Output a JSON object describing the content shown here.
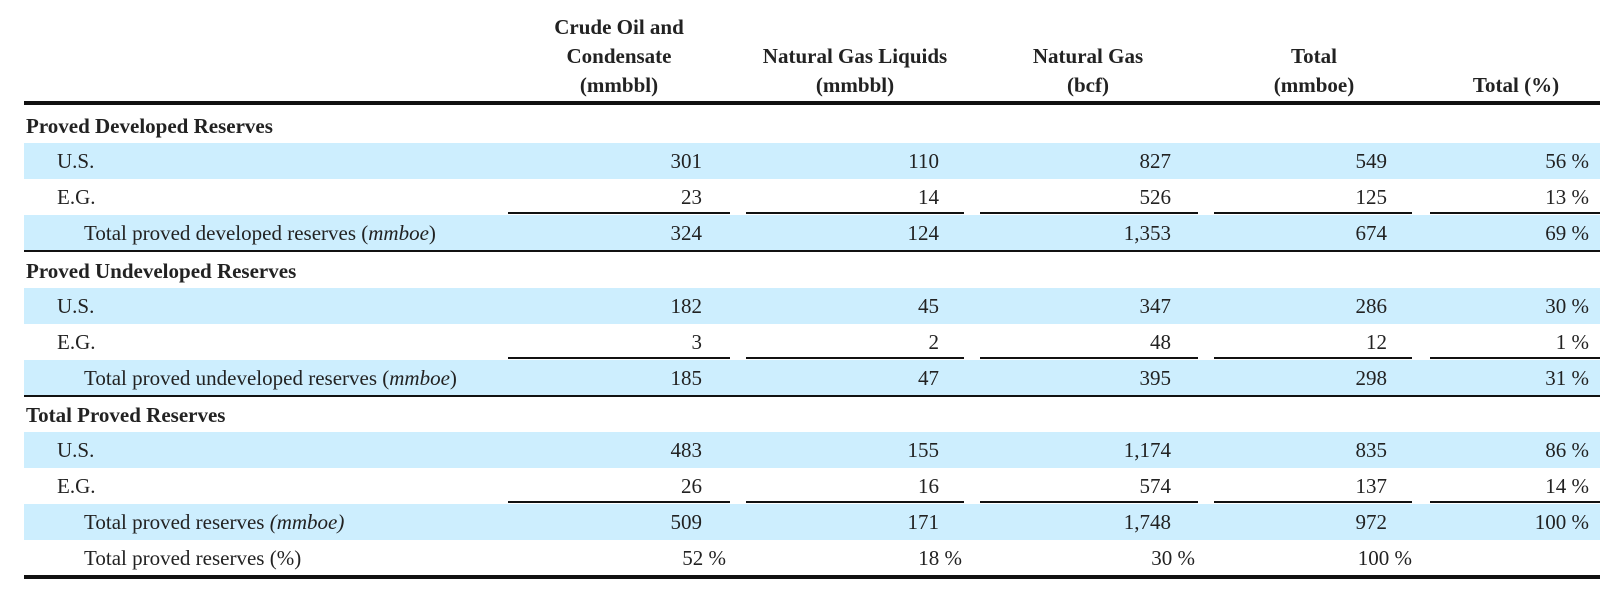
{
  "headers": [
    {
      "lines": [
        "Crude Oil and",
        "Condensate",
        "(mmbbl)"
      ]
    },
    {
      "lines": [
        "Natural Gas Liquids",
        "(mmbbl)"
      ]
    },
    {
      "lines": [
        "Natural Gas",
        "(bcf)"
      ]
    },
    {
      "lines": [
        "Total",
        "(mmboe)"
      ]
    },
    {
      "lines": [
        "Total (%)"
      ]
    }
  ],
  "sections": [
    {
      "title": "Proved Developed Reserves",
      "rows": [
        {
          "label": "U.S.",
          "values": [
            "301",
            "110",
            "827",
            "549",
            "56 %"
          ]
        },
        {
          "label": "E.G.",
          "values": [
            "23",
            "14",
            "526",
            "125",
            "13 %"
          ]
        }
      ],
      "total": {
        "label": "Total proved developed reserves (",
        "label_unit": "mmboe",
        "label_close": ")",
        "values": [
          "324",
          "124",
          "1,353",
          "674",
          "69 %"
        ]
      }
    },
    {
      "title": "Proved Undeveloped Reserves",
      "rows": [
        {
          "label": "U.S.",
          "values": [
            "182",
            "45",
            "347",
            "286",
            "30 %"
          ]
        },
        {
          "label": "E.G.",
          "values": [
            "3",
            "2",
            "48",
            "12",
            "1 %"
          ]
        }
      ],
      "total": {
        "label": "Total proved undeveloped reserves (",
        "label_unit": "mmboe",
        "label_close": ")",
        "values": [
          "185",
          "47",
          "395",
          "298",
          "31 %"
        ]
      }
    },
    {
      "title": "Total Proved Reserves",
      "rows": [
        {
          "label": "U.S.",
          "values": [
            "483",
            "155",
            "1,174",
            "835",
            "86 %"
          ]
        },
        {
          "label": "E.G.",
          "values": [
            "26",
            "16",
            "574",
            "137",
            "14 %"
          ]
        }
      ],
      "total": {
        "label": "Total proved reserves ",
        "label_unit": "(mmboe)",
        "label_close": "",
        "values": [
          "509",
          "171",
          "1,748",
          "972",
          "100 %"
        ]
      }
    }
  ],
  "pct_row": {
    "label": "Total proved reserves (%)",
    "values": [
      "52 %",
      "18 %",
      "30 %",
      "100 %"
    ]
  },
  "colors": {
    "shade": "#cdeefe",
    "rule": "#111111"
  }
}
